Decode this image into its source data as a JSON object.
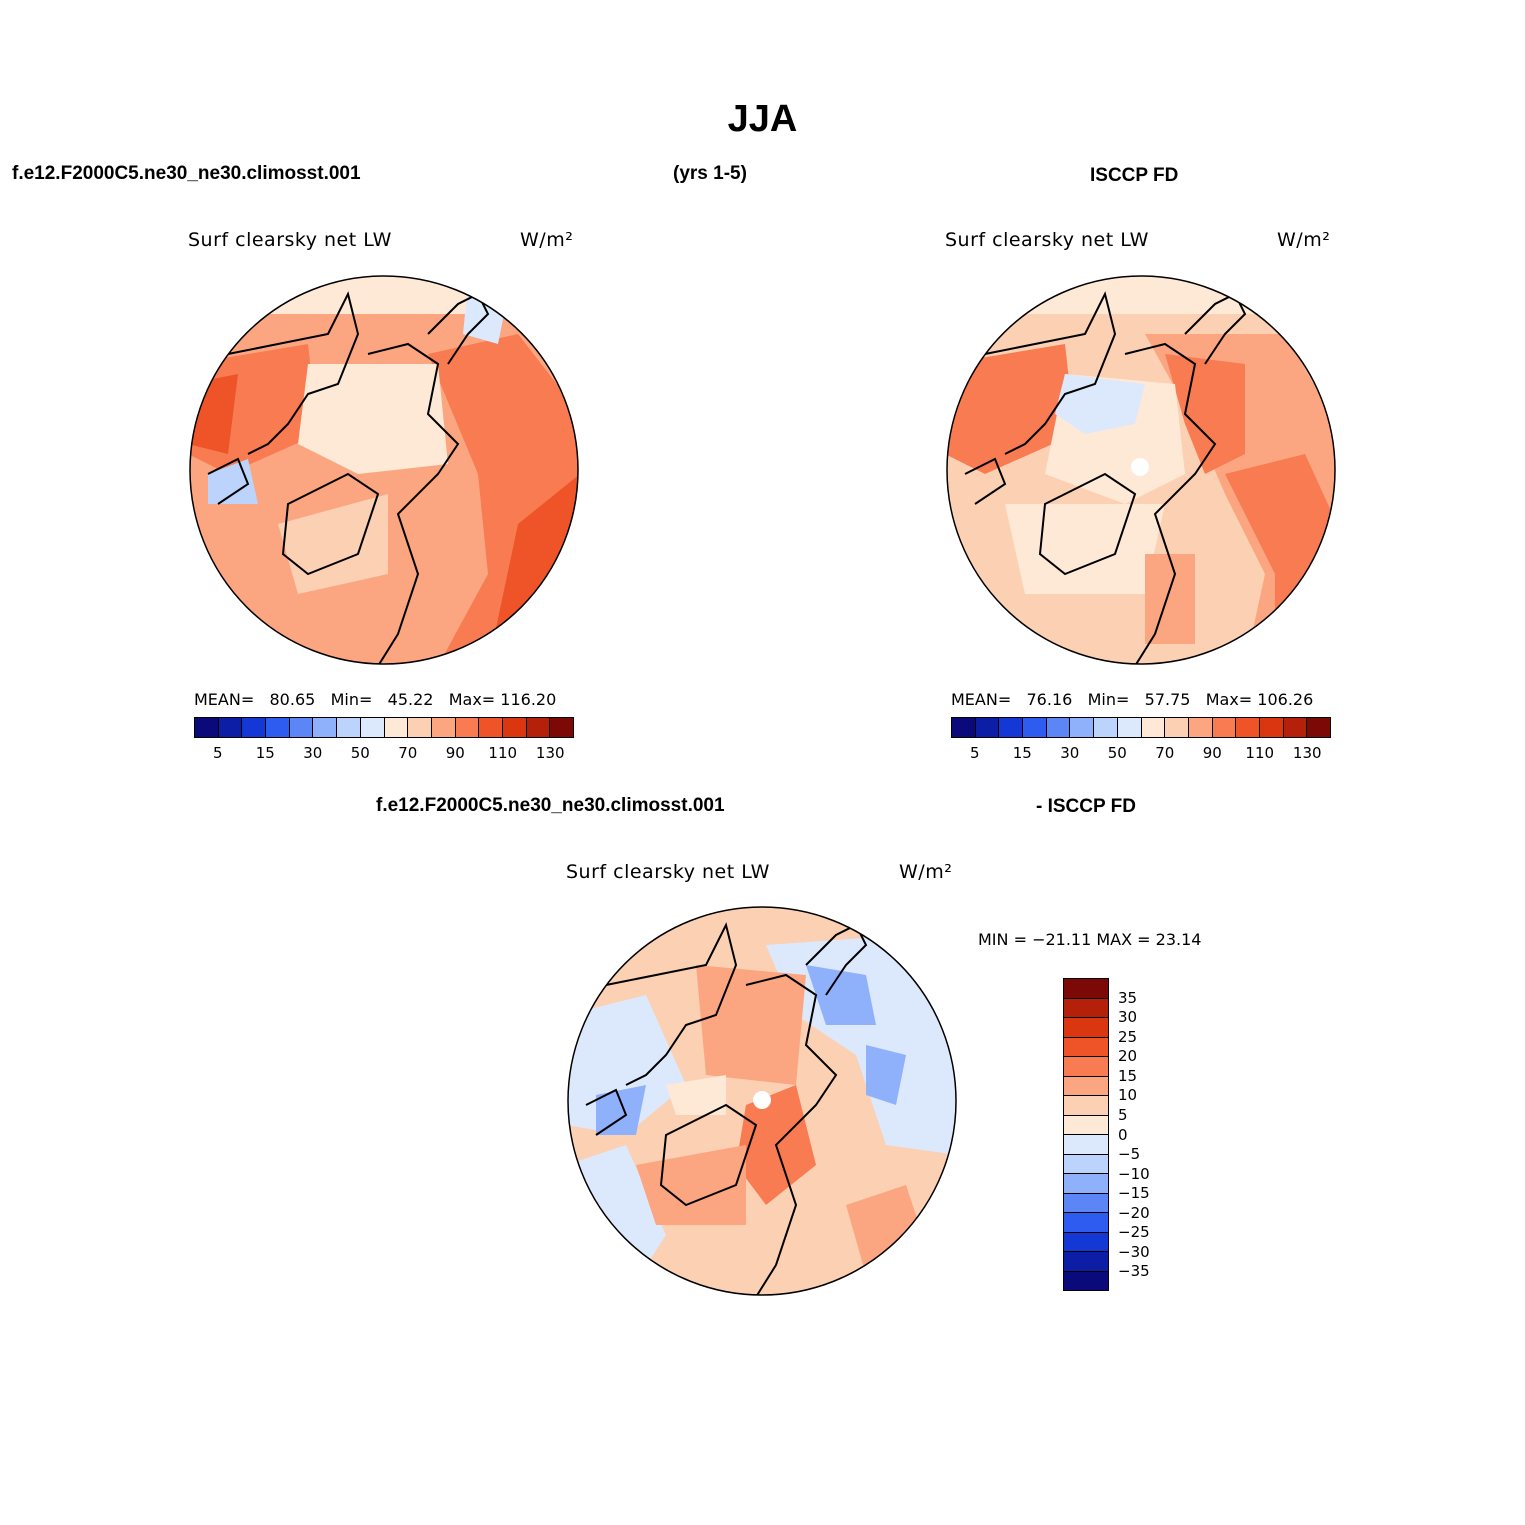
{
  "figure": {
    "season": "JJA",
    "case_name": "f.e12.F2000C5.ne30_ne30.climosst.001",
    "years": "(yrs 1-5)",
    "obs_name": "ISCCP FD",
    "diff_case_name": "f.e12.F2000C5.ne30_ne30.climosst.001",
    "diff_obs_name": "- ISCCP FD"
  },
  "panels": {
    "model": {
      "variable": "Surf clearsky net LW",
      "units": "W/m²",
      "mean_label": "MEAN=",
      "mean": "80.65",
      "min_label": "Min=",
      "min": "45.22",
      "max_label": "Max=",
      "max": "116.20"
    },
    "obs": {
      "variable": "Surf clearsky net LW",
      "units": "W/m²",
      "mean_label": "MEAN=",
      "mean": "76.16",
      "min_label": "Min=",
      "min": "57.75",
      "max_label": "Max=",
      "max": "106.26"
    },
    "diff": {
      "variable": "Surf clearsky net LW",
      "units": "W/m²",
      "minmax_text": "MIN = −21.11 MAX =  23.14"
    }
  },
  "colorbar_main": {
    "colors": [
      "#0a0a7a",
      "#0d1ea6",
      "#1338d6",
      "#2e5cf0",
      "#5c86f5",
      "#8fb0fa",
      "#bcd4fc",
      "#dce9fc",
      "#fee9d6",
      "#fcd0b3",
      "#fba681",
      "#f87b52",
      "#ee5428",
      "#da3710",
      "#b5200a",
      "#7d0906"
    ],
    "tick_labels": [
      "5",
      "15",
      "30",
      "50",
      "70",
      "90",
      "110",
      "130"
    ]
  },
  "colorbar_diff": {
    "colors_top_to_bottom": [
      "#7d0906",
      "#b5200a",
      "#da3710",
      "#ee5428",
      "#f87b52",
      "#fba681",
      "#fcd0b3",
      "#fee9d6",
      "#dce9fc",
      "#bcd4fc",
      "#8fb0fa",
      "#5c86f5",
      "#2e5cf0",
      "#1338d6",
      "#0d1ea6",
      "#0a0a7a"
    ],
    "tick_labels": [
      "35",
      "30",
      "25",
      "20",
      "15",
      "10",
      "5",
      "0",
      "−5",
      "−10",
      "−15",
      "−20",
      "−25",
      "−30",
      "−35"
    ]
  },
  "map_fill": {
    "model_base": "#fba681",
    "obs_base": "#fcd0b3",
    "diff_base": "#fcd0b3",
    "pole_hole": "#ffffff"
  }
}
